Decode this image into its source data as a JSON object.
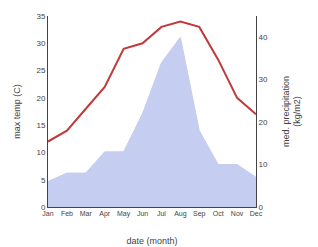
{
  "chart_data": {
    "type": "line",
    "xlabel": "date (month)",
    "ylabel": "max temp (C)",
    "y2label": "med. precipitation\n(kg/m2)",
    "categories": [
      "Jan",
      "Feb",
      "Mar",
      "Apr",
      "May",
      "Jun",
      "Jul",
      "Aug",
      "Sep",
      "Oct",
      "Nov",
      "Dec"
    ],
    "series": [
      {
        "type": "area",
        "axis": "y2",
        "color": "#c5cdf0",
        "values": [
          6,
          8,
          8,
          13,
          13,
          22,
          34,
          40,
          18,
          10,
          10,
          7
        ]
      },
      {
        "type": "line",
        "color": "#c0393b",
        "values": [
          12,
          14,
          18,
          22,
          29,
          30,
          33,
          34,
          33,
          27,
          20,
          17
        ]
      }
    ],
    "ylim": [
      0,
      35
    ],
    "yticks": [
      0,
      5,
      10,
      15,
      20,
      25,
      30,
      35
    ],
    "y2lim": [
      0,
      45
    ],
    "y2ticks": [
      0,
      10,
      20,
      30,
      40
    ],
    "grid": false
  }
}
